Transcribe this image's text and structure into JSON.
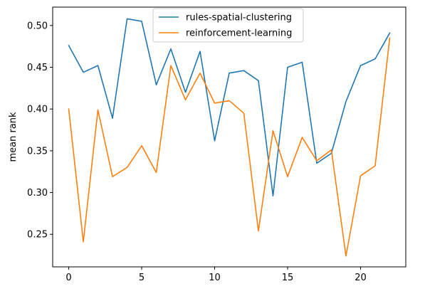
{
  "chart_data": {
    "type": "line",
    "title": "",
    "xlabel": "",
    "ylabel": "mean rank",
    "xlim": [
      -1.1,
      23.1
    ],
    "ylim": [
      0.211,
      0.522
    ],
    "xticks": [
      0,
      5,
      10,
      15,
      20
    ],
    "yticks": [
      0.25,
      0.3,
      0.35,
      0.4,
      0.45,
      0.5
    ],
    "ytick_labels": [
      "0.25",
      "0.30",
      "0.35",
      "0.40",
      "0.45",
      "0.50"
    ],
    "grid": false,
    "legend": "upper center",
    "x": [
      0,
      1,
      2,
      3,
      4,
      5,
      6,
      7,
      8,
      9,
      10,
      11,
      12,
      13,
      14,
      15,
      16,
      17,
      18,
      19,
      20,
      21,
      22
    ],
    "series": [
      {
        "name": "rules-spatial-clustering",
        "color": "#1f77b4",
        "values": [
          0.476,
          0.444,
          0.452,
          0.389,
          0.508,
          0.505,
          0.429,
          0.472,
          0.42,
          0.469,
          0.362,
          0.443,
          0.446,
          0.434,
          0.296,
          0.45,
          0.456,
          0.335,
          0.347,
          0.409,
          0.452,
          0.46,
          0.491
        ]
      },
      {
        "name": "reinforcement-learning",
        "color": "#ff7f0e",
        "values": [
          0.4,
          0.241,
          0.399,
          0.319,
          0.33,
          0.356,
          0.324,
          0.452,
          0.411,
          0.443,
          0.407,
          0.41,
          0.395,
          0.254,
          0.374,
          0.319,
          0.366,
          0.338,
          0.351,
          0.224,
          0.32,
          0.332,
          0.485
        ]
      }
    ]
  }
}
